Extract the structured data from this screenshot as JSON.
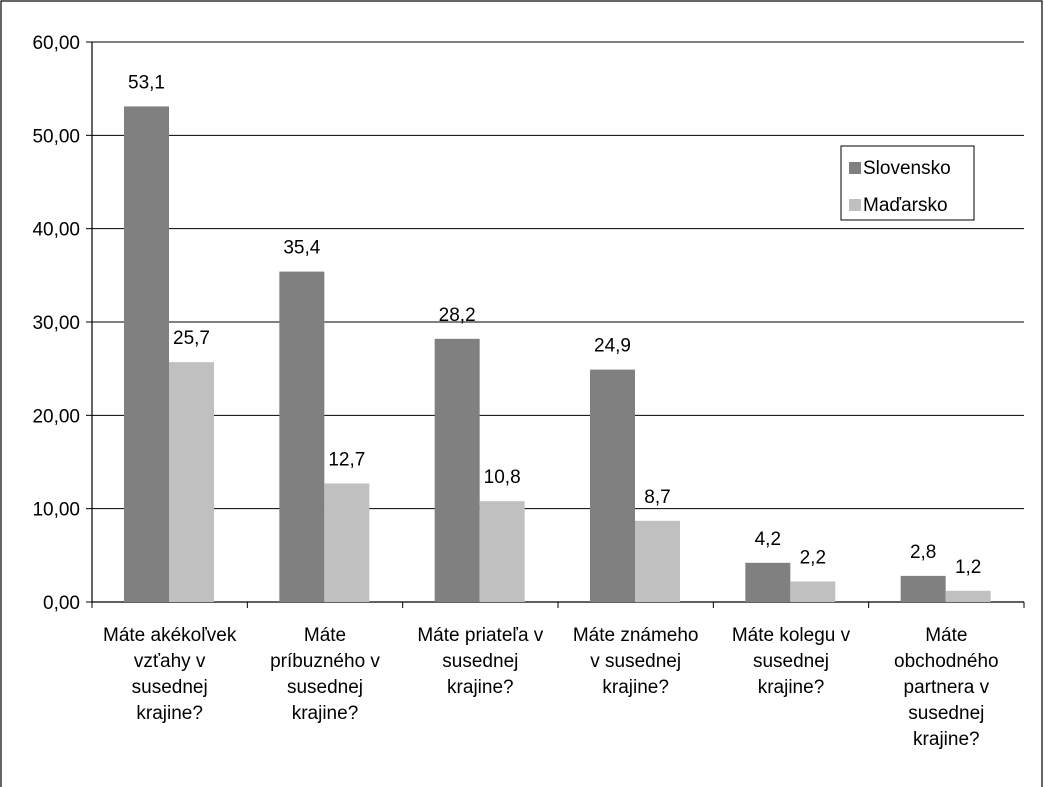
{
  "chart_data": {
    "type": "bar",
    "categories": [
      "Máte akékoľvek vzťahy v susednej krajine?",
      "Máte príbuzného v susednej krajine?",
      "Máte priateľa v susednej krajine?",
      "Máte známeho v susednej krajine?",
      "Máte kolegu v susednej krajine?",
      "Máte obchodného partnera v susednej krajine?"
    ],
    "category_lines": [
      [
        "Máte akékoľvek",
        "vzťahy v",
        "susednej",
        "krajine?"
      ],
      [
        "Máte",
        "príbuzného v",
        "susednej",
        "krajine?"
      ],
      [
        "Máte priateľa v",
        "susednej",
        "krajine?"
      ],
      [
        "Máte známeho",
        "v susednej",
        "krajine?"
      ],
      [
        "Máte kolegu v",
        "susednej",
        "krajine?"
      ],
      [
        "Máte",
        "obchodného",
        "partnera v",
        "susednej",
        "krajine?"
      ]
    ],
    "series": [
      {
        "name": "Slovensko",
        "color": "#808080",
        "values": [
          53.1,
          35.4,
          28.2,
          24.9,
          4.2,
          2.8
        ],
        "labels": [
          "53,1",
          "35,4",
          "28,2",
          "24,9",
          "4,2",
          "2,8"
        ]
      },
      {
        "name": "Maďarsko",
        "color": "#c0c0c0",
        "values": [
          25.7,
          12.7,
          10.8,
          8.7,
          2.2,
          1.2
        ],
        "labels": [
          "25,7",
          "12,7",
          "10,8",
          "8,7",
          "2,2",
          "1,2"
        ]
      }
    ],
    "ylim": [
      0,
      60
    ],
    "yticks": [
      0,
      10,
      20,
      30,
      40,
      50,
      60
    ],
    "ytick_labels": [
      "0,00",
      "10,00",
      "20,00",
      "30,00",
      "40,00",
      "50,00",
      "60,00"
    ],
    "title": "",
    "xlabel": "",
    "ylabel": "",
    "grid": true,
    "legend_position": "right"
  }
}
